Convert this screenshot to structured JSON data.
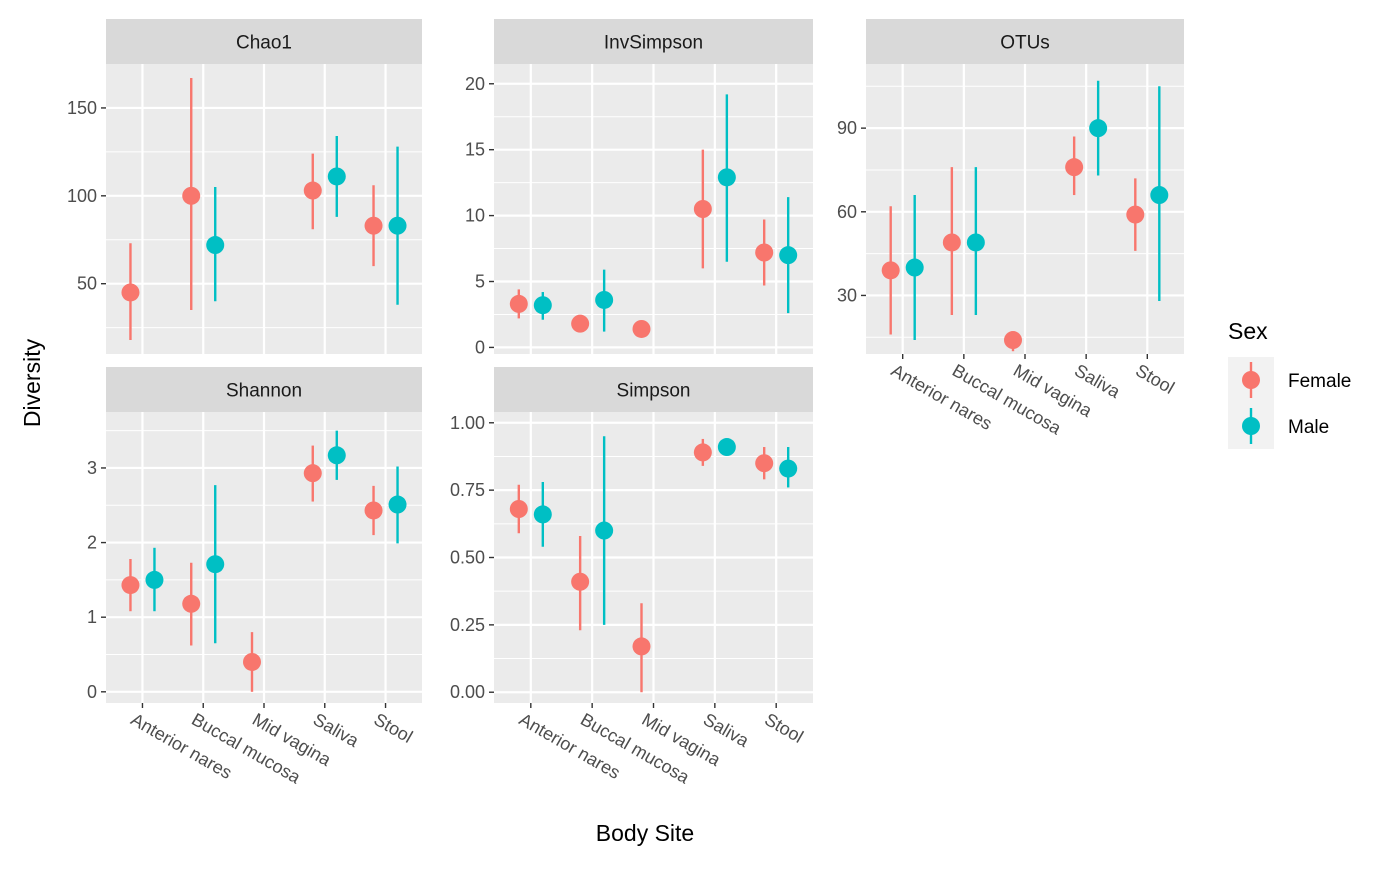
{
  "chart_data": {
    "type": "scatter",
    "subtype": "point-range faceted",
    "xlabel": "Body Site",
    "ylabel": "Diversity",
    "categories": [
      "Anterior nares",
      "Buccal mucosa",
      "Mid vagina",
      "Saliva",
      "Stool"
    ],
    "legend": {
      "title": "Sex",
      "position": "right",
      "entries": [
        {
          "name": "Female",
          "color": "#F8766D"
        },
        {
          "name": "Male",
          "color": "#00BFC4"
        }
      ]
    },
    "facets": [
      {
        "title": "Chao1",
        "ylim": [
          10,
          175
        ],
        "yticks": [
          50,
          100,
          150
        ],
        "yticklabels": [
          "50",
          "100",
          "150"
        ],
        "show_x_labels": false,
        "series": [
          {
            "name": "Female",
            "points": [
              {
                "x": "Anterior nares",
                "y": 45,
                "lo": 18,
                "hi": 73
              },
              {
                "x": "Buccal mucosa",
                "y": 100,
                "lo": 35,
                "hi": 167
              },
              {
                "x": "Saliva",
                "y": 103,
                "lo": 81,
                "hi": 124
              },
              {
                "x": "Stool",
                "y": 83,
                "lo": 60,
                "hi": 106
              }
            ]
          },
          {
            "name": "Male",
            "points": [
              {
                "x": "Buccal mucosa",
                "y": 72,
                "lo": 40,
                "hi": 105
              },
              {
                "x": "Saliva",
                "y": 111,
                "lo": 88,
                "hi": 134
              },
              {
                "x": "Stool",
                "y": 83,
                "lo": 38,
                "hi": 128
              }
            ]
          }
        ]
      },
      {
        "title": "InvSimpson",
        "ylim": [
          -0.5,
          21.5
        ],
        "yticks": [
          0,
          5,
          10,
          15,
          20
        ],
        "yticklabels": [
          "0",
          "5",
          "10",
          "15",
          "20"
        ],
        "show_x_labels": false,
        "series": [
          {
            "name": "Female",
            "points": [
              {
                "x": "Anterior nares",
                "y": 3.3,
                "lo": 2.2,
                "hi": 4.4
              },
              {
                "x": "Buccal mucosa",
                "y": 1.8,
                "lo": 1.8,
                "hi": 1.8
              },
              {
                "x": "Mid vagina",
                "y": 1.4,
                "lo": 1.4,
                "hi": 1.4
              },
              {
                "x": "Saliva",
                "y": 10.5,
                "lo": 6.0,
                "hi": 15.0
              },
              {
                "x": "Stool",
                "y": 7.2,
                "lo": 4.7,
                "hi": 9.7
              }
            ]
          },
          {
            "name": "Male",
            "points": [
              {
                "x": "Anterior nares",
                "y": 3.2,
                "lo": 2.1,
                "hi": 4.2
              },
              {
                "x": "Buccal mucosa",
                "y": 3.6,
                "lo": 1.2,
                "hi": 5.9
              },
              {
                "x": "Saliva",
                "y": 12.9,
                "lo": 6.5,
                "hi": 19.2
              },
              {
                "x": "Stool",
                "y": 7.0,
                "lo": 2.6,
                "hi": 11.4
              }
            ]
          }
        ]
      },
      {
        "title": "OTUs",
        "ylim": [
          9,
          113
        ],
        "yticks": [
          30,
          60,
          90
        ],
        "yticklabels": [
          "30",
          "60",
          "90"
        ],
        "show_x_labels": true,
        "series": [
          {
            "name": "Female",
            "points": [
              {
                "x": "Anterior nares",
                "y": 39,
                "lo": 16,
                "hi": 62
              },
              {
                "x": "Buccal mucosa",
                "y": 49,
                "lo": 23,
                "hi": 76
              },
              {
                "x": "Mid vagina",
                "y": 14,
                "lo": 10,
                "hi": 17
              },
              {
                "x": "Saliva",
                "y": 76,
                "lo": 66,
                "hi": 87
              },
              {
                "x": "Stool",
                "y": 59,
                "lo": 46,
                "hi": 72
              }
            ]
          },
          {
            "name": "Male",
            "points": [
              {
                "x": "Anterior nares",
                "y": 40,
                "lo": 14,
                "hi": 66
              },
              {
                "x": "Buccal mucosa",
                "y": 49,
                "lo": 23,
                "hi": 76
              },
              {
                "x": "Saliva",
                "y": 90,
                "lo": 73,
                "hi": 107
              },
              {
                "x": "Stool",
                "y": 66,
                "lo": 28,
                "hi": 105
              }
            ]
          }
        ]
      },
      {
        "title": "Shannon",
        "ylim": [
          -0.15,
          3.75
        ],
        "yticks": [
          0,
          1,
          2,
          3
        ],
        "yticklabels": [
          "0",
          "1",
          "2",
          "3"
        ],
        "show_x_labels": true,
        "series": [
          {
            "name": "Female",
            "points": [
              {
                "x": "Anterior nares",
                "y": 1.43,
                "lo": 1.08,
                "hi": 1.78
              },
              {
                "x": "Buccal mucosa",
                "y": 1.18,
                "lo": 0.62,
                "hi": 1.73
              },
              {
                "x": "Mid vagina",
                "y": 0.4,
                "lo": 0.0,
                "hi": 0.8
              },
              {
                "x": "Saliva",
                "y": 2.93,
                "lo": 2.55,
                "hi": 3.3
              },
              {
                "x": "Stool",
                "y": 2.43,
                "lo": 2.1,
                "hi": 2.76
              }
            ]
          },
          {
            "name": "Male",
            "points": [
              {
                "x": "Anterior nares",
                "y": 1.5,
                "lo": 1.08,
                "hi": 1.93
              },
              {
                "x": "Buccal mucosa",
                "y": 1.71,
                "lo": 0.65,
                "hi": 2.77
              },
              {
                "x": "Saliva",
                "y": 3.17,
                "lo": 2.84,
                "hi": 3.5
              },
              {
                "x": "Stool",
                "y": 2.51,
                "lo": 1.99,
                "hi": 3.02
              }
            ]
          }
        ]
      },
      {
        "title": "Simpson",
        "ylim": [
          -0.04,
          1.04
        ],
        "yticks": [
          0,
          0.25,
          0.5,
          0.75,
          1
        ],
        "yticklabels": [
          "0.00",
          "0.25",
          "0.50",
          "0.75",
          "1.00"
        ],
        "show_x_labels": true,
        "series": [
          {
            "name": "Female",
            "points": [
              {
                "x": "Anterior nares",
                "y": 0.68,
                "lo": 0.59,
                "hi": 0.77
              },
              {
                "x": "Buccal mucosa",
                "y": 0.41,
                "lo": 0.23,
                "hi": 0.58
              },
              {
                "x": "Mid vagina",
                "y": 0.17,
                "lo": 0.0,
                "hi": 0.33
              },
              {
                "x": "Saliva",
                "y": 0.89,
                "lo": 0.84,
                "hi": 0.94
              },
              {
                "x": "Stool",
                "y": 0.85,
                "lo": 0.79,
                "hi": 0.91
              }
            ]
          },
          {
            "name": "Male",
            "points": [
              {
                "x": "Anterior nares",
                "y": 0.66,
                "lo": 0.54,
                "hi": 0.78
              },
              {
                "x": "Buccal mucosa",
                "y": 0.6,
                "lo": 0.25,
                "hi": 0.95
              },
              {
                "x": "Saliva",
                "y": 0.91,
                "lo": 0.89,
                "hi": 0.93
              },
              {
                "x": "Stool",
                "y": 0.83,
                "lo": 0.76,
                "hi": 0.91
              }
            ]
          }
        ]
      }
    ]
  }
}
